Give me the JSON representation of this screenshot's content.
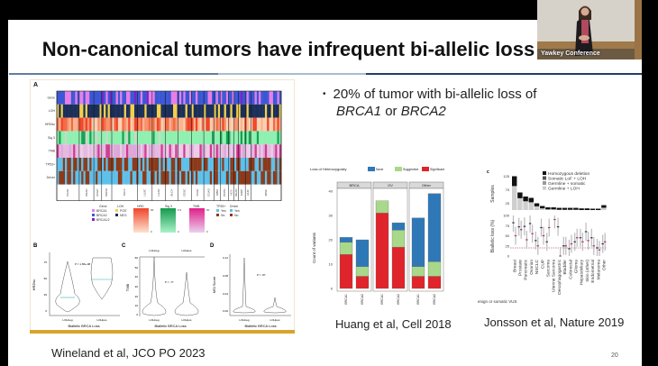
{
  "slide": {
    "title": "Non-canonical tumors have infrequent bi-allelic loss",
    "bullet": "20% of  tumor with bi-allelic loss of",
    "bullet_line2_gene1": "BRCA1",
    "bullet_line2_or": " or ",
    "bullet_line2_gene2": "BRCA2",
    "slide_number": "20",
    "citations": {
      "wineland": "Wineland et al, JCO PO 2023",
      "huang": "Huang et al, Cell 2018",
      "jonsson": "Jonsson et al, Nature 2019"
    }
  },
  "video": {
    "label": "Yawkey Conference"
  },
  "figure_wineland": {
    "panel_a": {
      "label": "A",
      "row_labels": [
        "Gene",
        "LOH",
        "HRDsc",
        "Sig 3",
        "TMB",
        "TP53+",
        "Driver"
      ],
      "tumor_types": [
        "PAAD",
        "PRAD",
        "UCEC",
        "SKCM",
        "THCA",
        "LUSC",
        "LUAD",
        "BLCA",
        "CESC",
        "STAD",
        "COAD",
        "GBM",
        "PCPG",
        "UCS",
        "READ",
        "KIRP",
        "LIHC",
        "MISC"
      ],
      "legend": {
        "gene": {
          "title": "Gene",
          "items": [
            "BRCA1",
            "BRCA2",
            "BRCA1/2"
          ]
        },
        "loh": {
          "title": "LOH",
          "items": [
            "POS",
            "NEG"
          ]
        },
        "hrd": {
          "title": "HRD",
          "max": "90",
          "min": "0"
        },
        "sig3": {
          "title": "Sig 3",
          "max": "0.3",
          "min": "0"
        },
        "tmb": {
          "title": "TMB",
          "max": "60",
          "min": "0"
        },
        "tp53": {
          "title": "TP53+",
          "items": [
            "Yes",
            "No"
          ]
        },
        "driver": {
          "title": "Driver",
          "items": [
            "Yes",
            "No"
          ]
        }
      },
      "colors": {
        "brca1": "#e67ee6",
        "brca2": "#3b57d4",
        "brca12": "#7b22c8",
        "loh_pos": "#f2d04a",
        "loh_neg": "#1b2f5a",
        "yes": "#5ec0ea",
        "no": "#8b3a1a"
      }
    },
    "panel_b": {
      "label": "B",
      "ylabel": "HRDsc",
      "yticks": [
        "0",
        "25",
        "50",
        "75"
      ],
      "pvalue": "P = 1.65e-08",
      "xticks": [
        "LOHneg",
        "LOHpos"
      ],
      "xlabel": "Biallelic BRCA Loss"
    },
    "panel_c": {
      "label": "C",
      "ylabel": "TMB",
      "yticks": [
        "0",
        "10",
        "20",
        "30",
        "40",
        "50",
        "60"
      ],
      "pvalue": "P = .77",
      "xticks": [
        "LOHneg",
        "LOHpos"
      ],
      "top_labels": [
        "LOHneg",
        "LOHpos"
      ],
      "xlabel": "Biallelic BRCA Loss"
    },
    "panel_d": {
      "label": "D",
      "ylabel": "MSI Score",
      "yticks": [
        "0.00",
        "0.04",
        "0.08",
        "0.12"
      ],
      "pvalue": "P = .87",
      "xticks": [
        "LOHneg",
        "LOHpos"
      ],
      "xlabel": "Biallelic BRCA Loss"
    }
  },
  "chart_data": [
    {
      "type": "bar",
      "stacked": true,
      "legend_title": "Loss of Heterozygosity",
      "legend_placement": "top",
      "ylabel": "Count of variants",
      "ylim": [
        0,
        42
      ],
      "yticks": [
        "0",
        "10",
        "20",
        "30",
        "40"
      ],
      "facets": [
        "BRCA",
        "OV",
        "Other"
      ],
      "categories": [
        "BRCA1",
        "BRCA2"
      ],
      "series": [
        {
          "name": "Significant",
          "color": "#e0242c",
          "values": {
            "BRCA": [
              14,
              5
            ],
            "OV": [
              31,
              17
            ],
            "Other": [
              5,
              5
            ]
          }
        },
        {
          "name": "Suggestive",
          "color": "#a8d88a",
          "values": {
            "BRCA": [
              5,
              4
            ],
            "OV": [
              5,
              7
            ],
            "Other": [
              4,
              6
            ]
          }
        },
        {
          "name": "None",
          "color": "#2f78b8",
          "values": {
            "BRCA": [
              2,
              11
            ],
            "OV": [
              0,
              3
            ],
            "Other": [
              20,
              28
            ]
          }
        }
      ]
    },
    {
      "type": "bar+pointrange",
      "panel_label": "c",
      "categories": [
        "Breast",
        "Prostate",
        "Pancreatic",
        "Ovarian",
        "NSCLC",
        "CUP",
        "Sarcoma",
        "Uterine Sarcoma",
        "Oesophagogastric",
        "Bladder",
        "Colorectal",
        "Glioma",
        "Hepatobiliary",
        "Skin (other)",
        "Endometrial",
        "Melanoma",
        "Other"
      ],
      "samples": {
        "ylabel": "Samples",
        "yticks": [
          "25",
          "75",
          "125"
        ],
        "ylim": [
          0,
          130
        ],
        "values": [
          125,
          65,
          50,
          45,
          25,
          15,
          10,
          10,
          8,
          8,
          8,
          8,
          6,
          6,
          5,
          5,
          18
        ]
      },
      "legend": [
        "Homozygous deletion",
        "Somatic LoF + LOH",
        "Germline + somatic",
        "Germline + LOH"
      ],
      "biallelic": {
        "ylabel": "Biallelic loss (%)",
        "yticks": [
          "0",
          "25",
          "50",
          "75",
          "100"
        ],
        "ylim": [
          0,
          100
        ],
        "reference_line": 20,
        "series": [
          {
            "color": "#2a2a55",
            "values": [
              82,
              72,
              73,
              80,
              38,
              70,
              35,
              null,
              72,
              25,
              18,
              35,
              45,
              60,
              45,
              20,
              30
            ]
          },
          {
            "color": "#b0306a",
            "values": [
              50,
              65,
              40,
              55,
              25,
              50,
              70,
              90,
              0,
              25,
              30,
              45,
              35,
              38,
              25,
              15,
              35
            ]
          }
        ]
      },
      "footnote": "enign or somatic VUS"
    }
  ]
}
